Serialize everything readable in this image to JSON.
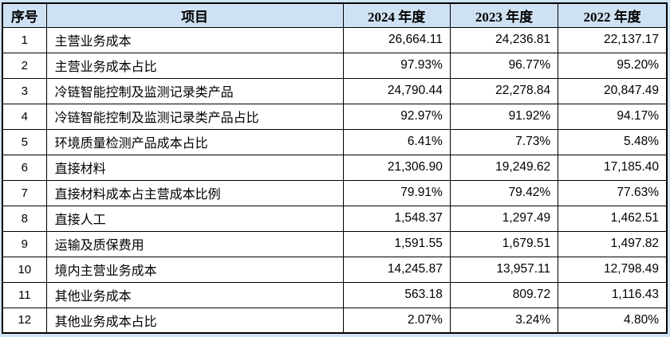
{
  "colors": {
    "page_background": "#cfe2f3",
    "header_background": "#cfe2f3",
    "cell_background": "#ffffff",
    "border": "#000000",
    "text": "#000000"
  },
  "table": {
    "columns": [
      {
        "key": "index",
        "label": "序号"
      },
      {
        "key": "item",
        "label": "项目"
      },
      {
        "key": "y2024",
        "label": "2024 年度"
      },
      {
        "key": "y2023",
        "label": "2023 年度"
      },
      {
        "key": "y2022",
        "label": "2022 年度"
      }
    ],
    "rows": [
      {
        "index": "1",
        "item": "主营业务成本",
        "y2024": "26,664.11",
        "y2023": "24,236.81",
        "y2022": "22,137.17"
      },
      {
        "index": "2",
        "item": "主营业务成本占比",
        "y2024": "97.93%",
        "y2023": "96.77%",
        "y2022": "95.20%"
      },
      {
        "index": "3",
        "item": "冷链智能控制及监测记录类产品",
        "y2024": "24,790.44",
        "y2023": "22,278.84",
        "y2022": "20,847.49"
      },
      {
        "index": "4",
        "item": "冷链智能控制及监测记录类产品占比",
        "y2024": "92.97%",
        "y2023": "91.92%",
        "y2022": "94.17%"
      },
      {
        "index": "5",
        "item": "环境质量检测产品成本占比",
        "y2024": "6.41%",
        "y2023": "7.73%",
        "y2022": "5.48%"
      },
      {
        "index": "6",
        "item": "直接材料",
        "y2024": "21,306.90",
        "y2023": "19,249.62",
        "y2022": "17,185.40"
      },
      {
        "index": "7",
        "item": "直接材料成本占主营成本比例",
        "y2024": "79.91%",
        "y2023": "79.42%",
        "y2022": "77.63%"
      },
      {
        "index": "8",
        "item": "直接人工",
        "y2024": "1,548.37",
        "y2023": "1,297.49",
        "y2022": "1,462.51"
      },
      {
        "index": "9",
        "item": "运输及质保费用",
        "y2024": "1,591.55",
        "y2023": "1,679.51",
        "y2022": "1,497.82"
      },
      {
        "index": "10",
        "item": "境内主营业务成本",
        "y2024": "14,245.87",
        "y2023": "13,957.11",
        "y2022": "12,798.49"
      },
      {
        "index": "11",
        "item": "其他业务成本",
        "y2024": "563.18",
        "y2023": "809.72",
        "y2022": "1,116.43"
      },
      {
        "index": "12",
        "item": "其他业务成本占比",
        "y2024": "2.07%",
        "y2023": "3.24%",
        "y2022": "4.80%"
      }
    ]
  }
}
